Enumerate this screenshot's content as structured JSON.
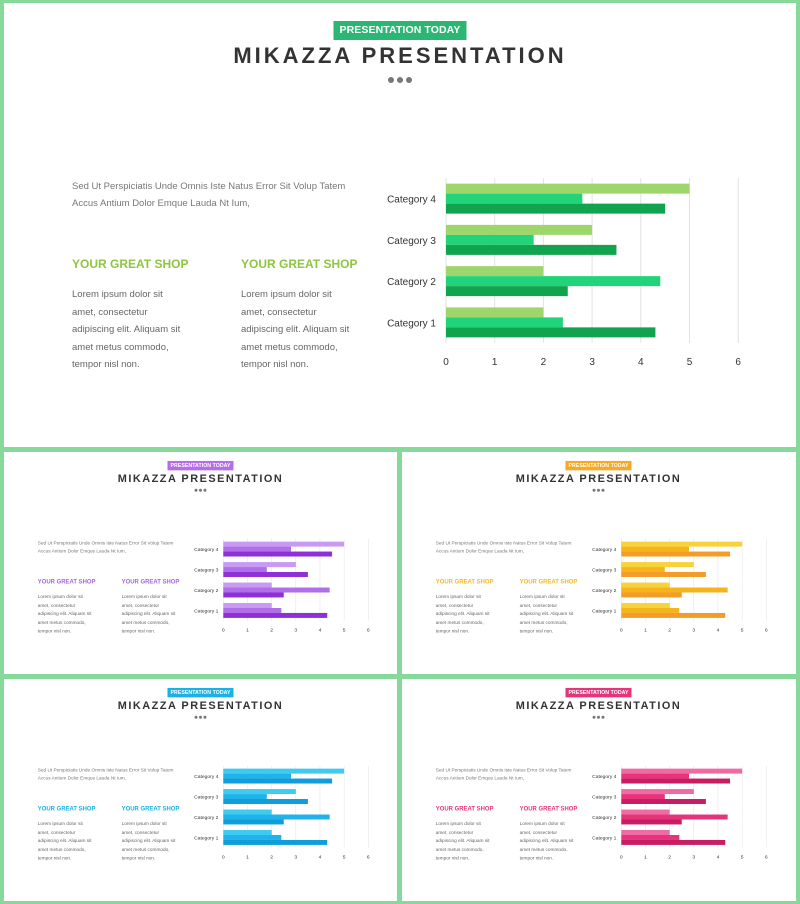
{
  "badge_label": "PRESENTATION TODAY",
  "title": "MIKAZZA PRESENTATION",
  "intro_text": "Sed Ut Perspiciatis Unde Omnis Iste Natus Error Sit Volup Tatem Accus Antium Dolor Emque Lauda Nt Ium,",
  "columns": [
    {
      "heading": "YOUR GREAT SHOP",
      "body": "Lorem ipsum dolor sit amet, consectetur adipiscing elit. Aliquam sit amet metus commodo, tempor nisl non."
    },
    {
      "heading": "YOUR GREAT SHOP",
      "body": "Lorem ipsum dolor sit amet, consectetur adipiscing elit. Aliquam sit amet metus commodo, tempor nisl non."
    }
  ],
  "themes": [
    {
      "name": "green",
      "accent": "#8dc63f",
      "badge": "#2bb673",
      "series_colors": [
        "#9fd66b",
        "#21d47a",
        "#12a34f"
      ]
    },
    {
      "name": "purple",
      "accent": "#a466e0",
      "badge": "#b36ee8",
      "series_colors": [
        "#c99af2",
        "#b06ee8",
        "#8f2fd8"
      ]
    },
    {
      "name": "orange",
      "accent": "#f4ba1e",
      "badge": "#f7a826",
      "series_colors": [
        "#f8d23a",
        "#f5b41c",
        "#f39c27"
      ]
    },
    {
      "name": "blue",
      "accent": "#1ab1e6",
      "badge": "#1ab1e6",
      "series_colors": [
        "#3fcaf0",
        "#20b2ea",
        "#0f9ddc"
      ]
    },
    {
      "name": "pink",
      "accent": "#e6347b",
      "badge": "#e6347b",
      "series_colors": [
        "#f06aa3",
        "#e6347b",
        "#c81d63"
      ]
    }
  ],
  "chart_data": {
    "type": "bar",
    "orientation": "horizontal",
    "categories": [
      "Category 1",
      "Category 2",
      "Category 3",
      "Category 4"
    ],
    "series": [
      {
        "values": [
          2.0,
          2.0,
          3.0,
          5.0
        ]
      },
      {
        "values": [
          2.4,
          4.4,
          1.8,
          2.8
        ]
      },
      {
        "values": [
          4.3,
          2.5,
          3.5,
          4.5
        ]
      }
    ],
    "xlim": [
      0,
      6
    ],
    "x_ticks": [
      "0",
      "1",
      "2",
      "3",
      "4",
      "5",
      "6"
    ],
    "grid": true,
    "legend": "none"
  }
}
